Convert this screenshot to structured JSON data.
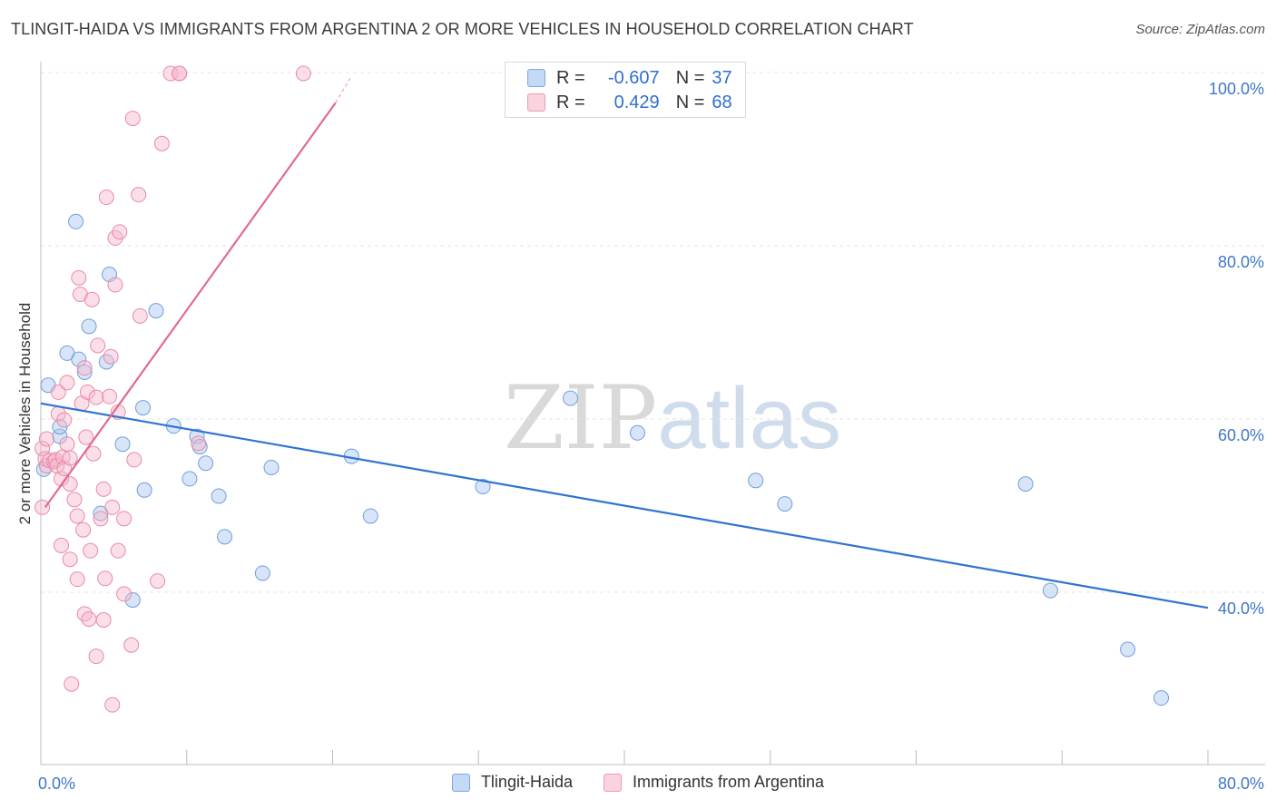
{
  "title": "TLINGIT-HAIDA VS IMMIGRANTS FROM ARGENTINA 2 OR MORE VEHICLES IN HOUSEHOLD CORRELATION CHART",
  "source": "Source: ZipAtlas.com",
  "watermark": {
    "zip": "ZIP",
    "atlas": "atlas"
  },
  "legend_top": [
    {
      "r_label": "R =",
      "r_value": "-0.607",
      "n_label": "N =",
      "n_value": "37",
      "color": "#a8c6f0"
    },
    {
      "r_label": "R =",
      "r_value": "0.429",
      "n_label": "N =",
      "n_value": "68",
      "color": "#f6b8cb"
    }
  ],
  "chart_data": {
    "type": "scatter",
    "title": "TLINGIT-HAIDA VS IMMIGRANTS FROM ARGENTINA 2 OR MORE VEHICLES IN HOUSEHOLD CORRELATION CHART",
    "xlabel": "",
    "ylabel": "2 or more Vehicles in Household",
    "xlim": [
      0,
      80
    ],
    "ylim": [
      20,
      103
    ],
    "grid": true,
    "legend_position": "bottom",
    "x_tick_labels": [
      {
        "value": 0,
        "label": "0.0%"
      },
      {
        "value": 80,
        "label": "80.0%"
      }
    ],
    "y_tick_labels": [
      {
        "value": 40,
        "label": "40.0%"
      },
      {
        "value": 60,
        "label": "60.0%"
      },
      {
        "value": 80,
        "label": "80.0%"
      },
      {
        "value": 100,
        "label": "100.0%"
      }
    ],
    "series": [
      {
        "name": "Tlingit-Haida",
        "color": "#a8c6f0",
        "stroke": "#6f9fdc",
        "line_color": "#2f74d0",
        "trend": {
          "x": [
            0,
            80
          ],
          "y": [
            61.8,
            38.2
          ],
          "dashed_extension_to": null
        },
        "points": [
          [
            0.2,
            54.2
          ],
          [
            0.5,
            63.9
          ],
          [
            1.3,
            58.0
          ],
          [
            1.3,
            59.1
          ],
          [
            1.8,
            67.6
          ],
          [
            2.4,
            82.8
          ],
          [
            2.6,
            66.9
          ],
          [
            3.0,
            65.4
          ],
          [
            3.3,
            70.7
          ],
          [
            4.1,
            49.1
          ],
          [
            4.5,
            66.6
          ],
          [
            4.7,
            76.7
          ],
          [
            5.6,
            57.1
          ],
          [
            6.3,
            39.1
          ],
          [
            7.0,
            61.3
          ],
          [
            7.1,
            51.8
          ],
          [
            7.9,
            72.5
          ],
          [
            9.1,
            59.2
          ],
          [
            10.2,
            53.1
          ],
          [
            10.7,
            58.0
          ],
          [
            10.9,
            56.8
          ],
          [
            11.3,
            54.9
          ],
          [
            12.2,
            51.1
          ],
          [
            12.6,
            46.4
          ],
          [
            15.2,
            42.2
          ],
          [
            15.8,
            54.4
          ],
          [
            21.3,
            55.7
          ],
          [
            22.6,
            48.8
          ],
          [
            30.3,
            52.2
          ],
          [
            36.3,
            62.4
          ],
          [
            40.9,
            58.4
          ],
          [
            49.0,
            52.9
          ],
          [
            51.0,
            50.2
          ],
          [
            67.5,
            52.5
          ],
          [
            69.2,
            40.2
          ],
          [
            74.5,
            33.4
          ],
          [
            76.8,
            27.8
          ]
        ]
      },
      {
        "name": "Immigrants from Argentina",
        "color": "#f6b8cb",
        "stroke": "#e98aa8",
        "line_color": "#e26a91",
        "trend": {
          "x": [
            0.3,
            20.2
          ],
          "y": [
            49.8,
            96.5
          ],
          "dashed_extension_to": [
            21.3,
            99.6
          ]
        },
        "points": [
          [
            0.1,
            49.8
          ],
          [
            0.1,
            56.6
          ],
          [
            0.3,
            55.4
          ],
          [
            0.4,
            54.6
          ],
          [
            0.4,
            57.7
          ],
          [
            0.6,
            55.2
          ],
          [
            0.9,
            55.1
          ],
          [
            1.0,
            55.3
          ],
          [
            1.1,
            54.6
          ],
          [
            1.2,
            63.1
          ],
          [
            1.2,
            60.6
          ],
          [
            1.4,
            53.1
          ],
          [
            1.4,
            45.4
          ],
          [
            1.5,
            55.6
          ],
          [
            1.6,
            54.3
          ],
          [
            1.6,
            59.9
          ],
          [
            1.8,
            64.2
          ],
          [
            1.8,
            57.1
          ],
          [
            2.0,
            55.5
          ],
          [
            2.0,
            52.5
          ],
          [
            2.0,
            43.8
          ],
          [
            2.1,
            29.4
          ],
          [
            2.3,
            50.7
          ],
          [
            2.5,
            48.8
          ],
          [
            2.5,
            41.5
          ],
          [
            2.6,
            76.3
          ],
          [
            2.7,
            74.4
          ],
          [
            2.8,
            61.8
          ],
          [
            2.9,
            47.2
          ],
          [
            3.0,
            65.9
          ],
          [
            3.0,
            37.5
          ],
          [
            3.1,
            57.9
          ],
          [
            3.2,
            63.1
          ],
          [
            3.3,
            36.9
          ],
          [
            3.4,
            44.8
          ],
          [
            3.5,
            73.8
          ],
          [
            3.6,
            56.0
          ],
          [
            3.8,
            62.5
          ],
          [
            3.8,
            32.6
          ],
          [
            3.9,
            68.5
          ],
          [
            4.1,
            48.5
          ],
          [
            4.3,
            51.9
          ],
          [
            4.3,
            36.8
          ],
          [
            4.4,
            41.6
          ],
          [
            4.5,
            85.6
          ],
          [
            4.7,
            62.6
          ],
          [
            4.8,
            67.2
          ],
          [
            4.9,
            49.8
          ],
          [
            4.9,
            27.0
          ],
          [
            5.1,
            80.9
          ],
          [
            5.1,
            75.5
          ],
          [
            5.3,
            60.8
          ],
          [
            5.3,
            44.8
          ],
          [
            5.4,
            81.6
          ],
          [
            5.7,
            48.5
          ],
          [
            5.7,
            39.8
          ],
          [
            6.2,
            33.9
          ],
          [
            6.3,
            94.7
          ],
          [
            6.4,
            55.3
          ],
          [
            6.7,
            85.9
          ],
          [
            6.8,
            71.9
          ],
          [
            8.0,
            41.3
          ],
          [
            8.3,
            91.8
          ],
          [
            8.9,
            99.9
          ],
          [
            9.5,
            99.9
          ],
          [
            9.5,
            99.9
          ],
          [
            10.8,
            57.2
          ],
          [
            18.0,
            99.9
          ]
        ]
      }
    ]
  }
}
